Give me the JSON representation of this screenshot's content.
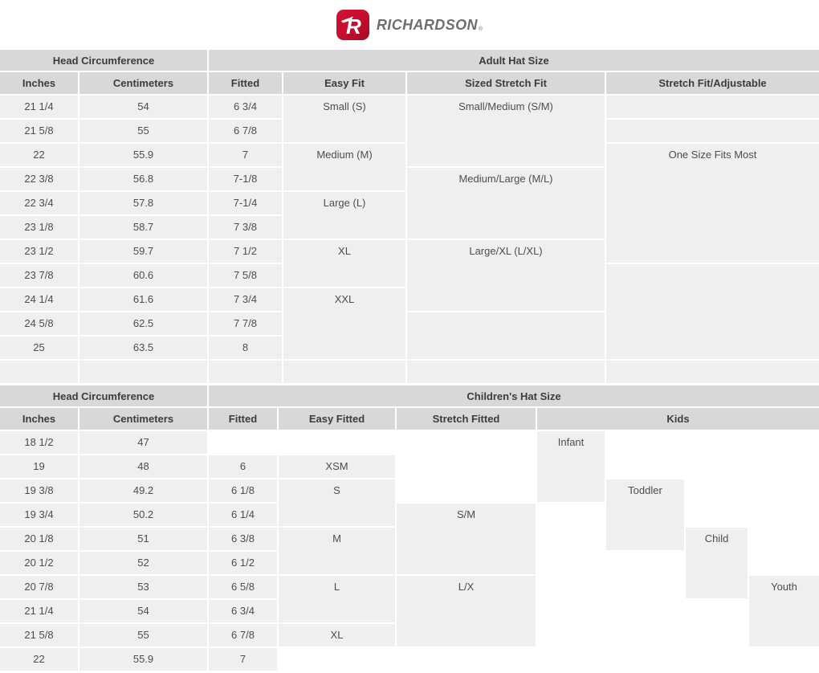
{
  "brand": {
    "logo_letter": "R",
    "name": "RICHARDSON",
    "trademark": "®"
  },
  "colors": {
    "header_bg": "#d8d8d8",
    "cell_bg": "#efefef",
    "cell_text": "#4d4d4d",
    "header_text": "#3c3c3c",
    "brand_red": "#c30d2e",
    "brand_gray": "#6d6e71"
  },
  "adult_table": {
    "group_headers": [
      "Head Circumference",
      "Adult Hat Size"
    ],
    "columns": [
      "Inches",
      "Centimeters",
      "Fitted",
      "Easy Fit",
      "Sized Stretch Fit",
      "Stretch Fit/Adjustable"
    ],
    "rows": [
      [
        "21 1/4",
        "54",
        "6 3/4"
      ],
      [
        "21 5/8",
        "55",
        "6 7/8"
      ],
      [
        "22",
        "55.9",
        "7"
      ],
      [
        "22 3/8",
        "56.8",
        "7-1/8"
      ],
      [
        "22 3/4",
        "57.8",
        "7-1/4"
      ],
      [
        "23 1/8",
        "58.7",
        "7 3/8"
      ],
      [
        "23 1/2",
        "59.7",
        "7 1/2"
      ],
      [
        "23 7/8",
        "60.6",
        "7 5/8"
      ],
      [
        "24 1/4",
        "61.6",
        "7 3/4"
      ],
      [
        "24 5/8",
        "62.5",
        "7 7/8"
      ],
      [
        "25",
        "63.5",
        "8"
      ],
      [
        "",
        "",
        ""
      ]
    ],
    "easy_fit": [
      {
        "label": "Small (S)",
        "rows": [
          1,
          2
        ]
      },
      {
        "label": "Medium (M)",
        "rows": [
          3,
          4
        ]
      },
      {
        "label": "Large (L)",
        "rows": [
          5,
          6
        ]
      },
      {
        "label": "XL",
        "rows": [
          7,
          8
        ]
      },
      {
        "label": "XXL",
        "rows": [
          9,
          11
        ]
      },
      {
        "label": "",
        "rows": [
          12,
          12
        ]
      }
    ],
    "sized_stretch_fit": [
      {
        "label": "Small/Medium (S/M)",
        "rows": [
          1,
          3
        ]
      },
      {
        "label": "Medium/Large (M/L)",
        "rows": [
          4,
          6
        ]
      },
      {
        "label": "Large/XL (L/XL)",
        "rows": [
          7,
          9
        ]
      },
      {
        "label": "",
        "rows": [
          10,
          11
        ]
      },
      {
        "label": "",
        "rows": [
          12,
          12
        ]
      }
    ],
    "stretch_fit_adjustable": [
      {
        "label": "",
        "rows": [
          1,
          1
        ]
      },
      {
        "label": "",
        "rows": [
          2,
          2
        ]
      },
      {
        "label": "One Size Fits Most",
        "rows": [
          3,
          7
        ]
      },
      {
        "label": "",
        "rows": [
          8,
          11
        ]
      },
      {
        "label": "",
        "rows": [
          12,
          12
        ]
      }
    ]
  },
  "children_table": {
    "group_headers": [
      "Head Circumference",
      "Children's Hat Size"
    ],
    "columns": [
      "Inches",
      "Centimeters",
      "Fitted",
      "Easy Fitted",
      "Stretch Fitted",
      "Kids"
    ],
    "rows": [
      [
        "18 1/2",
        "47",
        null
      ],
      [
        "19",
        "48",
        "6"
      ],
      [
        "19 3/8",
        "49.2",
        "6 1/8"
      ],
      [
        "19 3/4",
        "50.2",
        "6 1/4"
      ],
      [
        "20 1/8",
        "51",
        "6 3/8"
      ],
      [
        "20 1/2",
        "52",
        "6 1/2"
      ],
      [
        "20 7/8",
        "53",
        "6 5/8"
      ],
      [
        "21 1/4",
        "54",
        "6 3/4"
      ],
      [
        "21 5/8",
        "55",
        "6 7/8"
      ],
      [
        "22",
        "55.9",
        "7"
      ]
    ],
    "easy_fitted": [
      {
        "label": "XSM",
        "rows": [
          2,
          2
        ]
      },
      {
        "label": "S",
        "rows": [
          3,
          4
        ]
      },
      {
        "label": "M",
        "rows": [
          5,
          6
        ]
      },
      {
        "label": "L",
        "rows": [
          7,
          8
        ]
      },
      {
        "label": "XL",
        "rows": [
          9,
          9
        ]
      }
    ],
    "stretch_fitted": [
      {
        "label": "S/M",
        "rows": [
          4,
          6
        ]
      },
      {
        "label": "L/X",
        "rows": [
          7,
          9
        ]
      }
    ],
    "kids": [
      {
        "label": "Infant",
        "rows": [
          1,
          3
        ]
      },
      {
        "label": "Toddler",
        "rows": [
          3,
          5
        ]
      },
      {
        "label": "Child",
        "rows": [
          5,
          7
        ]
      },
      {
        "label": "Youth",
        "rows": [
          7,
          9
        ]
      }
    ]
  }
}
